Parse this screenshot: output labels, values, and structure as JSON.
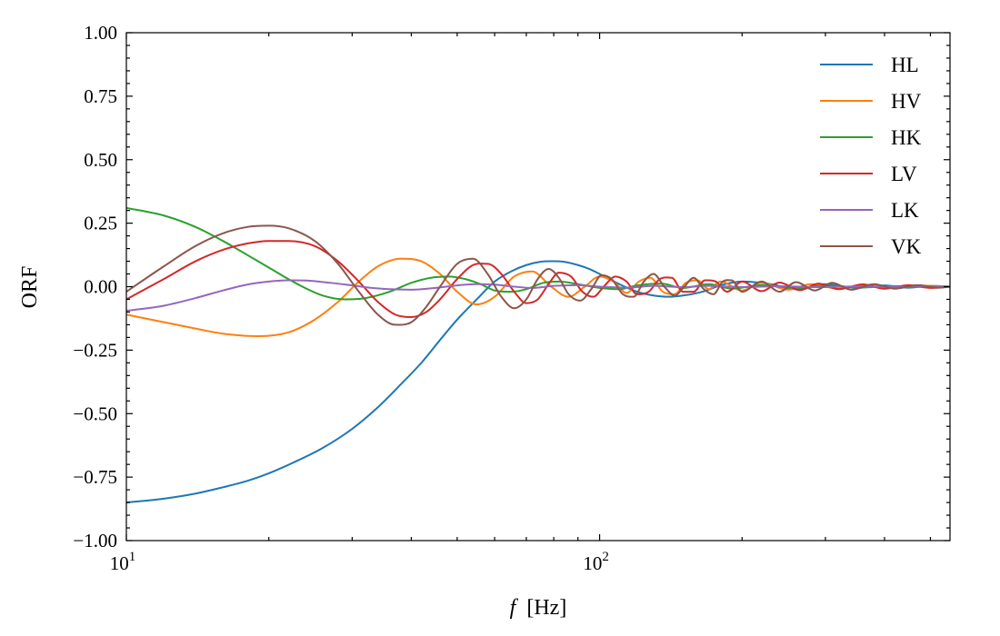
{
  "chart_data": {
    "type": "line",
    "xlabel_symbol": "f",
    "xlabel_unit": "[Hz]",
    "ylabel": "ORF",
    "xscale": "log",
    "xlim": [
      10,
      550
    ],
    "ylim": [
      -1.0,
      1.0
    ],
    "grid": false,
    "legend_position": "top-right",
    "y_ticks": [
      {
        "value": -1.0,
        "label": "−1.00"
      },
      {
        "value": -0.75,
        "label": "−0.75"
      },
      {
        "value": -0.5,
        "label": "−0.50"
      },
      {
        "value": -0.25,
        "label": "−0.25"
      },
      {
        "value": 0.0,
        "label": "0.00"
      },
      {
        "value": 0.25,
        "label": "0.25"
      },
      {
        "value": 0.5,
        "label": "0.50"
      },
      {
        "value": 0.75,
        "label": "0.75"
      },
      {
        "value": 1.0,
        "label": "1.00"
      }
    ],
    "x_ticks": [
      {
        "value": 10,
        "base": "10",
        "exp": "1"
      },
      {
        "value": 100,
        "base": "10",
        "exp": "2"
      }
    ],
    "series": [
      {
        "name": "HL",
        "color": "#1f77b4",
        "x": [
          10,
          12,
          14,
          16,
          18,
          20,
          23,
          26,
          30,
          34,
          38,
          42,
          46,
          50,
          55,
          60,
          65,
          70,
          75,
          80,
          84,
          90,
          95,
          100,
          110,
          120,
          130,
          140,
          150,
          165,
          180,
          200,
          230,
          260,
          300,
          350,
          400,
          450,
          500,
          550
        ],
        "y": [
          -0.85,
          -0.835,
          -0.815,
          -0.79,
          -0.765,
          -0.735,
          -0.685,
          -0.635,
          -0.56,
          -0.475,
          -0.385,
          -0.3,
          -0.21,
          -0.13,
          -0.05,
          0.02,
          0.06,
          0.085,
          0.098,
          0.1,
          0.098,
          0.085,
          0.07,
          0.05,
          0.01,
          -0.02,
          -0.035,
          -0.04,
          -0.035,
          -0.02,
          0.005,
          0.02,
          0.01,
          -0.01,
          0.01,
          -0.005,
          0.005,
          -0.004,
          0.003,
          0.0
        ]
      },
      {
        "name": "HV",
        "color": "#ff7f0e",
        "x": [
          10,
          12,
          14,
          16,
          19,
          22,
          25,
          28,
          31,
          34,
          38,
          42,
          46,
          50,
          55,
          60,
          66,
          72,
          79,
          86,
          93,
          100,
          107,
          114,
          121,
          128,
          136,
          144,
          152,
          161,
          170,
          180,
          200,
          220,
          250,
          280,
          320,
          370,
          420,
          480,
          550
        ],
        "y": [
          -0.11,
          -0.14,
          -0.165,
          -0.185,
          -0.195,
          -0.18,
          -0.13,
          -0.06,
          0.02,
          0.08,
          0.11,
          0.1,
          0.05,
          -0.02,
          -0.07,
          -0.04,
          0.04,
          0.06,
          0.0,
          -0.04,
          0.0,
          0.04,
          0.02,
          -0.025,
          0.02,
          0.035,
          -0.02,
          -0.03,
          0.015,
          0.025,
          -0.01,
          0.02,
          -0.015,
          0.015,
          -0.012,
          0.01,
          -0.008,
          0.007,
          -0.005,
          0.004,
          0.0
        ]
      },
      {
        "name": "HK",
        "color": "#2ca02c",
        "x": [
          10,
          12,
          14,
          16,
          18,
          20,
          23,
          26,
          29,
          32,
          36,
          40,
          44,
          48,
          52,
          56,
          60,
          65,
          70,
          76,
          82,
          90,
          100,
          110,
          120,
          135,
          150,
          170,
          190,
          220,
          260,
          300,
          360,
          430,
          500,
          550
        ],
        "y": [
          0.31,
          0.28,
          0.235,
          0.18,
          0.125,
          0.075,
          0.01,
          -0.035,
          -0.05,
          -0.045,
          -0.02,
          0.015,
          0.035,
          0.04,
          0.03,
          0.01,
          -0.015,
          -0.02,
          -0.01,
          0.015,
          0.02,
          0.01,
          -0.005,
          -0.01,
          0.005,
          0.012,
          -0.005,
          0.01,
          -0.008,
          0.006,
          -0.005,
          0.004,
          -0.003,
          0.002,
          -0.002,
          0.0
        ]
      },
      {
        "name": "LV",
        "color": "#d62728",
        "x": [
          10,
          12,
          14,
          16,
          18,
          20,
          22,
          25,
          28,
          31,
          34,
          37,
          40,
          43,
          46,
          50,
          54,
          58,
          62,
          66,
          70,
          74,
          78,
          82,
          87,
          92,
          97,
          102,
          108,
          114,
          120,
          127,
          134,
          142,
          150,
          158,
          167,
          176,
          186,
          200,
          220,
          240,
          265,
          290,
          320,
          360,
          400,
          450,
          500,
          550
        ],
        "y": [
          -0.05,
          0.03,
          0.1,
          0.145,
          0.17,
          0.18,
          0.18,
          0.16,
          0.1,
          0.02,
          -0.06,
          -0.11,
          -0.12,
          -0.1,
          -0.05,
          0.03,
          0.085,
          0.09,
          0.05,
          -0.02,
          -0.065,
          -0.05,
          0.01,
          0.055,
          0.04,
          -0.02,
          -0.04,
          0.0,
          0.04,
          0.02,
          -0.03,
          -0.02,
          0.03,
          0.035,
          -0.02,
          -0.02,
          0.025,
          0.02,
          -0.02,
          0.02,
          -0.018,
          0.016,
          -0.014,
          0.012,
          -0.01,
          0.009,
          -0.008,
          0.006,
          -0.005,
          0.0
        ]
      },
      {
        "name": "LK",
        "color": "#9467bd",
        "x": [
          10,
          12,
          14,
          16,
          18,
          20,
          22,
          24,
          27,
          30,
          33,
          36,
          40,
          45,
          50,
          55,
          60,
          66,
          72,
          80,
          90,
          100,
          115,
          130,
          150,
          170,
          200,
          240,
          290,
          350,
          420,
          500,
          550
        ],
        "y": [
          -0.095,
          -0.075,
          -0.045,
          -0.015,
          0.008,
          0.02,
          0.025,
          0.024,
          0.015,
          0.005,
          -0.005,
          -0.01,
          -0.012,
          -0.005,
          0.005,
          0.01,
          0.008,
          0.0,
          -0.005,
          0.003,
          0.006,
          0.0,
          -0.004,
          0.003,
          -0.002,
          0.003,
          -0.002,
          0.002,
          -0.002,
          0.001,
          -0.001,
          0.001,
          0.0
        ]
      },
      {
        "name": "VK",
        "color": "#8c564b",
        "x": [
          10,
          12,
          14,
          16,
          18,
          20,
          22,
          25,
          28,
          31,
          34,
          37,
          40,
          43,
          46,
          50,
          54,
          58,
          62,
          66,
          70,
          74,
          78,
          82,
          86,
          91,
          96,
          101,
          106,
          112,
          118,
          124,
          130,
          137,
          144,
          151,
          158,
          166,
          174,
          182,
          190,
          200,
          220,
          240,
          260,
          285,
          310,
          340,
          380,
          420,
          470,
          520,
          550
        ],
        "y": [
          -0.02,
          0.08,
          0.16,
          0.21,
          0.235,
          0.24,
          0.23,
          0.18,
          0.09,
          -0.02,
          -0.11,
          -0.15,
          -0.14,
          -0.08,
          0.0,
          0.09,
          0.11,
          0.05,
          -0.04,
          -0.085,
          -0.05,
          0.03,
          0.07,
          0.035,
          -0.03,
          -0.055,
          -0.01,
          0.045,
          0.03,
          -0.03,
          -0.04,
          0.02,
          0.05,
          0.0,
          -0.035,
          0.0,
          0.035,
          -0.01,
          -0.03,
          0.02,
          0.025,
          -0.02,
          0.02,
          -0.02,
          0.018,
          -0.015,
          0.015,
          -0.012,
          0.01,
          -0.008,
          0.006,
          -0.004,
          0.0
        ]
      }
    ]
  }
}
